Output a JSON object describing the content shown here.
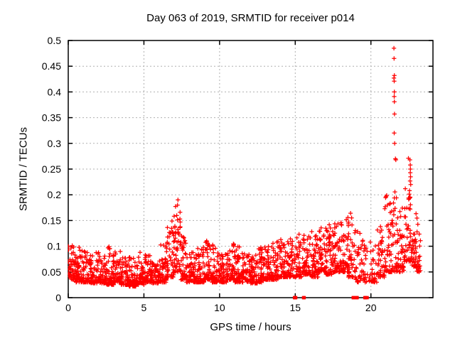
{
  "chart_data": {
    "type": "scatter",
    "title": "Day 063 of 2019, SRMTID for receiver p014",
    "xlabel": "GPS time / hours",
    "ylabel": "SRMTID / TECUs",
    "xlim": [
      0,
      24.1
    ],
    "ylim": [
      0,
      0.5
    ],
    "grid": true,
    "legend": "none",
    "marker": "plus",
    "marker_color": "#ff0000",
    "axis_color": "#000000",
    "grid_color": "#b0b0b0",
    "xticks": [
      {
        "v": 0,
        "t": "0"
      },
      {
        "v": 5,
        "t": "5"
      },
      {
        "v": 10,
        "t": "10"
      },
      {
        "v": 15,
        "t": "15"
      },
      {
        "v": 20,
        "t": "20"
      }
    ],
    "yticks": [
      {
        "v": 0,
        "t": "0"
      },
      {
        "v": 0.05,
        "t": "0.05"
      },
      {
        "v": 0.1,
        "t": "0.1"
      },
      {
        "v": 0.15,
        "t": "0.15"
      },
      {
        "v": 0.2,
        "t": "0.2"
      },
      {
        "v": 0.25,
        "t": "0.25"
      },
      {
        "v": 0.3,
        "t": "0.3"
      },
      {
        "v": 0.35,
        "t": "0.35"
      },
      {
        "v": 0.4,
        "t": "0.4"
      },
      {
        "v": 0.45,
        "t": "0.45"
      },
      {
        "v": 0.5,
        "t": "0.5"
      }
    ],
    "series_name": "SRMTID",
    "seed": 2019063,
    "profile_columns": [
      "t_start",
      "t_end",
      "n_points",
      "y_min",
      "y_max",
      "skew"
    ],
    "scatter_profile": [
      [
        0.0,
        0.5,
        52,
        0.035,
        0.105,
        2.0
      ],
      [
        0.5,
        1.0,
        52,
        0.03,
        0.1,
        2.2
      ],
      [
        1.0,
        1.5,
        52,
        0.03,
        0.095,
        2.2
      ],
      [
        1.5,
        2.0,
        52,
        0.028,
        0.09,
        2.2
      ],
      [
        2.0,
        2.5,
        52,
        0.028,
        0.085,
        2.2
      ],
      [
        2.5,
        3.0,
        52,
        0.025,
        0.1,
        2.4
      ],
      [
        3.0,
        3.5,
        52,
        0.03,
        0.09,
        2.2
      ],
      [
        3.5,
        4.0,
        52,
        0.025,
        0.085,
        2.2
      ],
      [
        4.0,
        4.5,
        52,
        0.022,
        0.08,
        2.2
      ],
      [
        4.5,
        5.0,
        52,
        0.025,
        0.09,
        2.4
      ],
      [
        5.0,
        5.5,
        52,
        0.03,
        0.085,
        2.2
      ],
      [
        5.5,
        6.0,
        52,
        0.028,
        0.07,
        1.8
      ],
      [
        6.0,
        6.5,
        52,
        0.03,
        0.105,
        2.4
      ],
      [
        6.5,
        7.0,
        50,
        0.04,
        0.16,
        2.4
      ],
      [
        7.0,
        7.45,
        45,
        0.05,
        0.195,
        2.2
      ],
      [
        7.45,
        7.8,
        40,
        0.035,
        0.12,
        2.2
      ],
      [
        7.8,
        8.5,
        65,
        0.03,
        0.09,
        2.2
      ],
      [
        8.5,
        9.0,
        52,
        0.03,
        0.1,
        2.3
      ],
      [
        9.0,
        9.5,
        52,
        0.035,
        0.12,
        2.3
      ],
      [
        9.5,
        10.0,
        52,
        0.03,
        0.105,
        2.3
      ],
      [
        10.0,
        10.5,
        52,
        0.03,
        0.085,
        2.0
      ],
      [
        10.5,
        11.0,
        52,
        0.035,
        0.105,
        2.3
      ],
      [
        11.0,
        11.5,
        52,
        0.03,
        0.1,
        2.3
      ],
      [
        11.5,
        12.0,
        52,
        0.03,
        0.085,
        2.0
      ],
      [
        12.0,
        12.5,
        52,
        0.028,
        0.085,
        2.0
      ],
      [
        12.5,
        13.0,
        52,
        0.03,
        0.1,
        2.3
      ],
      [
        13.0,
        13.5,
        52,
        0.035,
        0.105,
        2.3
      ],
      [
        13.5,
        14.0,
        52,
        0.035,
        0.11,
        2.2
      ],
      [
        14.0,
        14.5,
        52,
        0.04,
        0.115,
        2.2
      ],
      [
        14.5,
        15.0,
        48,
        0.04,
        0.12,
        2.2
      ],
      [
        15.0,
        15.5,
        45,
        0.04,
        0.125,
        2.2
      ],
      [
        15.5,
        16.0,
        48,
        0.045,
        0.125,
        2.2
      ],
      [
        16.0,
        16.5,
        52,
        0.04,
        0.13,
        2.2
      ],
      [
        16.5,
        17.0,
        52,
        0.05,
        0.14,
        2.1
      ],
      [
        17.0,
        17.5,
        52,
        0.045,
        0.145,
        2.1
      ],
      [
        17.5,
        18.0,
        52,
        0.05,
        0.15,
        2.1
      ],
      [
        18.0,
        18.5,
        52,
        0.05,
        0.16,
        2.1
      ],
      [
        18.5,
        19.0,
        46,
        0.04,
        0.165,
        2.1
      ],
      [
        19.0,
        19.4,
        26,
        0.03,
        0.14,
        2.1
      ],
      [
        19.4,
        19.9,
        26,
        0.03,
        0.125,
        2.1
      ],
      [
        19.9,
        20.4,
        32,
        0.03,
        0.11,
        2.1
      ],
      [
        20.4,
        20.9,
        42,
        0.04,
        0.155,
        2.2
      ],
      [
        20.9,
        21.3,
        42,
        0.05,
        0.2,
        2.2
      ],
      [
        21.3,
        21.7,
        38,
        0.05,
        0.21,
        2.0
      ],
      [
        21.7,
        22.2,
        48,
        0.05,
        0.185,
        2.0
      ],
      [
        22.2,
        22.7,
        48,
        0.07,
        0.22,
        2.0
      ],
      [
        22.7,
        23.0,
        34,
        0.06,
        0.165,
        2.0
      ],
      [
        23.0,
        23.3,
        24,
        0.05,
        0.155,
        2.0
      ]
    ],
    "outlier_points": [
      [
        21.52,
        0.485
      ],
      [
        21.53,
        0.465
      ],
      [
        21.55,
        0.432
      ],
      [
        21.52,
        0.427
      ],
      [
        21.54,
        0.421
      ],
      [
        21.55,
        0.4
      ],
      [
        21.54,
        0.391
      ],
      [
        21.55,
        0.381
      ],
      [
        21.56,
        0.357
      ],
      [
        21.54,
        0.32
      ],
      [
        21.57,
        0.3
      ],
      [
        21.62,
        0.27
      ],
      [
        21.65,
        0.268
      ],
      [
        22.48,
        0.271
      ],
      [
        22.58,
        0.268
      ],
      [
        22.6,
        0.258
      ],
      [
        22.61,
        0.25
      ],
      [
        22.6,
        0.243
      ],
      [
        22.62,
        0.235
      ],
      [
        22.59,
        0.227
      ],
      [
        22.63,
        0.22
      ],
      [
        22.55,
        0.208
      ],
      [
        7.25,
        0.19
      ],
      [
        7.22,
        0.18
      ]
    ],
    "zero_points": [
      14.95,
      14.99,
      15.03,
      15.55,
      15.59,
      18.83,
      18.87,
      19.05,
      19.09,
      19.6,
      19.64,
      19.75
    ]
  }
}
